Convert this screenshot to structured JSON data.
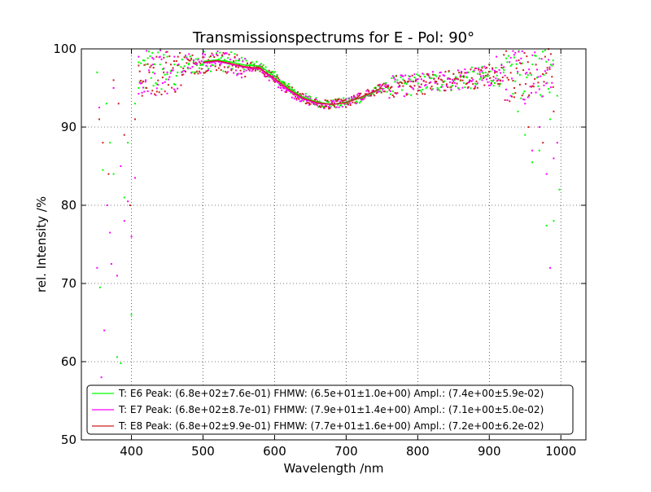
{
  "chart_data": {
    "type": "scatter",
    "title": "Transmissionspectrums for E - Pol: 90°",
    "xlabel": "Wavelength  /nm",
    "ylabel": "rel. Intensity  /%",
    "xlim": [
      330,
      1035
    ],
    "ylim": [
      50,
      100
    ],
    "xticks": [
      400,
      500,
      600,
      700,
      800,
      900,
      1000
    ],
    "yticks": [
      50,
      60,
      70,
      80,
      90,
      100
    ],
    "grid": true,
    "grid_style": "dotted",
    "legend_position": "lower-center",
    "series": [
      {
        "name": "T: E6 Peak: (6.8e+02±7.6e-01)  FHMW: (6.5e+01±1.0e+00)  Ampl.: (7.4e+00±5.9e-02)",
        "color": "#00ff00",
        "style": "scatter+fit",
        "fit_line": {
          "x": [
            500,
            520,
            540,
            560,
            580,
            600,
            620,
            640,
            660,
            680,
            700,
            720,
            740,
            750
          ],
          "y": [
            98.4,
            98.6,
            98.3,
            97.9,
            97.8,
            96.5,
            95.0,
            93.8,
            93.2,
            92.9,
            93.2,
            93.7,
            94.5,
            95.0
          ]
        },
        "points_sample": {
          "x": [
            352,
            356,
            360,
            365,
            370,
            375,
            380,
            385,
            390,
            395,
            400,
            405,
            410,
            420,
            430,
            440,
            450,
            460,
            470,
            480,
            490,
            500,
            850,
            870,
            890,
            900,
            920,
            940,
            950,
            960,
            970,
            980,
            985,
            990,
            995,
            998
          ],
          "y": [
            97,
            69.5,
            84.5,
            93,
            88,
            84,
            60.6,
            59.8,
            81,
            88,
            66,
            93,
            95,
            98,
            97,
            98,
            99,
            98,
            97,
            98,
            97,
            98,
            96,
            97,
            97,
            98,
            97,
            92,
            89,
            85.5,
            87,
            77.4,
            91,
            78,
            94,
            82
          ]
        }
      },
      {
        "name": "T: E7 Peak: (6.8e+02±8.7e-01)  FHMW: (7.9e+01±1.4e+00)  Ampl.: (7.1e+00±5.0e-02)",
        "color": "#ff00ff",
        "style": "scatter+fit",
        "fit_line": {
          "x": [
            500,
            520,
            540,
            560,
            580,
            600,
            620,
            640,
            660,
            680,
            700,
            720,
            740,
            750
          ],
          "y": [
            98.2,
            98.4,
            98.0,
            97.6,
            97.4,
            96.0,
            94.6,
            93.6,
            93.0,
            92.9,
            93.1,
            93.8,
            94.6,
            95.0
          ]
        },
        "points_sample": {
          "x": [
            352,
            355,
            358,
            362,
            366,
            370,
            372,
            375,
            380,
            385,
            390,
            395,
            400,
            405,
            410,
            420,
            430,
            440,
            450,
            460,
            870,
            890,
            910,
            930,
            950,
            960,
            970,
            980,
            985,
            990,
            995
          ],
          "y": [
            72,
            92.5,
            58,
            64,
            80,
            76.5,
            72.5,
            95,
            71,
            85,
            78,
            80.5,
            76,
            83.5,
            99,
            96,
            98,
            99,
            97,
            99,
            95,
            96,
            99,
            94,
            93,
            87,
            90,
            84,
            72,
            86,
            88
          ]
        }
      },
      {
        "name": "T: E8 Peak: (6.8e+02±9.9e-01)  FHMW: (7.7e+01±1.6e+00)  Ampl.: (7.2e+00±6.2e-02)",
        "color": "#cc2222",
        "style": "scatter+fit",
        "fit_line": {
          "x": [
            500,
            520,
            540,
            560,
            580,
            600,
            620,
            640,
            660,
            680,
            700,
            720,
            740,
            750
          ],
          "y": [
            98.3,
            98.5,
            98.1,
            97.7,
            97.5,
            96.2,
            94.8,
            93.7,
            93.1,
            92.9,
            93.1,
            93.8,
            94.6,
            95.0
          ]
        },
        "points_sample": {
          "x": [
            355,
            360,
            368,
            375,
            382,
            390,
            398,
            405,
            415,
            425,
            435,
            445,
            455,
            465,
            860,
            880,
            900,
            915,
            935,
            955,
            975,
            990
          ],
          "y": [
            91,
            88,
            84,
            96,
            93,
            89,
            80,
            91,
            94,
            97,
            99,
            97,
            98,
            99,
            96,
            95,
            98,
            96,
            95,
            90,
            88,
            92
          ]
        }
      }
    ]
  }
}
